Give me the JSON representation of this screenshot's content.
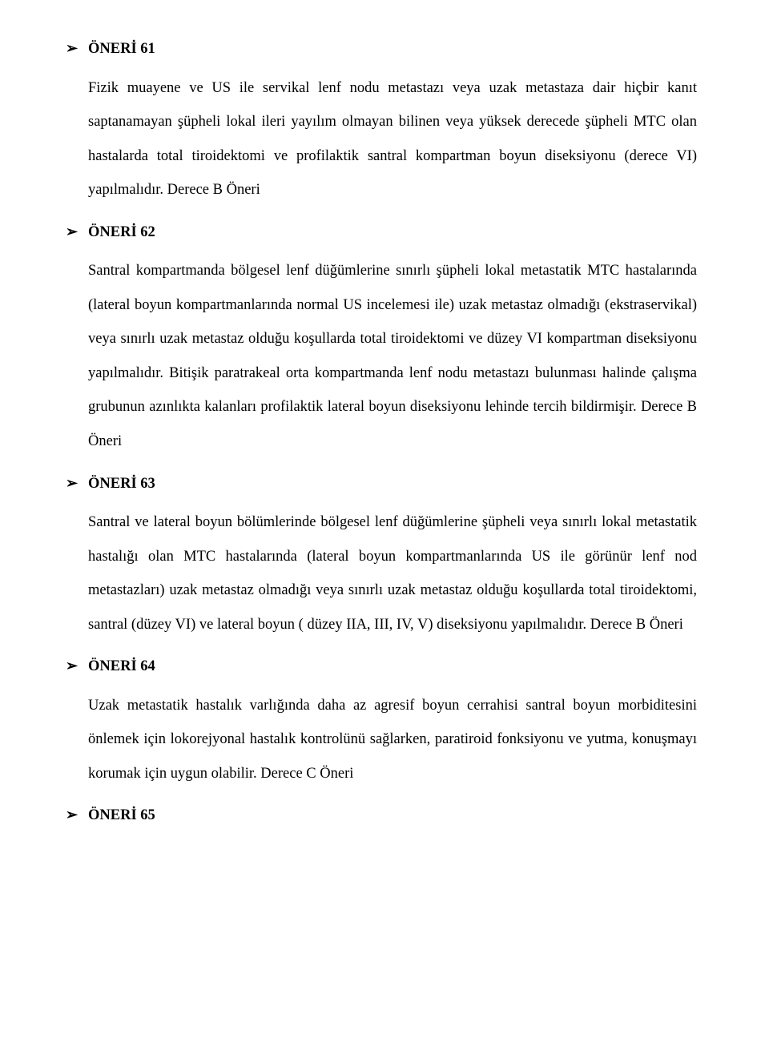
{
  "bullet": "➢",
  "sections": [
    {
      "heading": "ÖNERİ 61",
      "body": "Fizik muayene ve US ile servikal lenf nodu metastazı veya uzak metastaza dair hiçbir kanıt saptanamayan şüpheli lokal ileri yayılım olmayan bilinen veya yüksek derecede şüpheli MTC olan hastalarda total tiroidektomi ve profilaktik santral kompartman boyun diseksiyonu (derece VI) yapılmalıdır. Derece B Öneri"
    },
    {
      "heading": "ÖNERİ 62",
      "body": "Santral kompartmanda bölgesel lenf düğümlerine sınırlı şüpheli lokal metastatik MTC hastalarında (lateral boyun kompartmanlarında normal US incelemesi ile) uzak metastaz olmadığı (ekstraservikal) veya sınırlı uzak metastaz olduğu koşullarda total tiroidektomi ve düzey VI kompartman diseksiyonu yapılmalıdır. Bitişik paratrakeal orta kompartmanda lenf nodu metastazı bulunması halinde çalışma grubunun azınlıkta kalanları profilaktik lateral boyun diseksiyonu lehinde tercih bildirmişir. Derece B Öneri"
    },
    {
      "heading": "ÖNERİ 63",
      "body": "Santral ve lateral boyun bölümlerinde bölgesel lenf düğümlerine şüpheli veya sınırlı lokal metastatik hastalığı olan MTC hastalarında (lateral boyun kompartmanlarında US ile görünür lenf nod metastazları) uzak metastaz olmadığı veya sınırlı uzak metastaz olduğu koşullarda total tiroidektomi, santral (düzey VI) ve lateral boyun ( düzey IIA, III, IV, V) diseksiyonu yapılmalıdır. Derece B Öneri"
    },
    {
      "heading": "ÖNERİ 64",
      "body": "Uzak metastatik hastalık varlığında daha az agresif boyun cerrahisi santral boyun morbiditesini önlemek için lokorejyonal hastalık kontrolünü sağlarken, paratiroid fonksiyonu ve yutma, konuşmayı korumak için uygun olabilir. Derece C Öneri"
    },
    {
      "heading": "ÖNERİ 65",
      "body": ""
    }
  ]
}
